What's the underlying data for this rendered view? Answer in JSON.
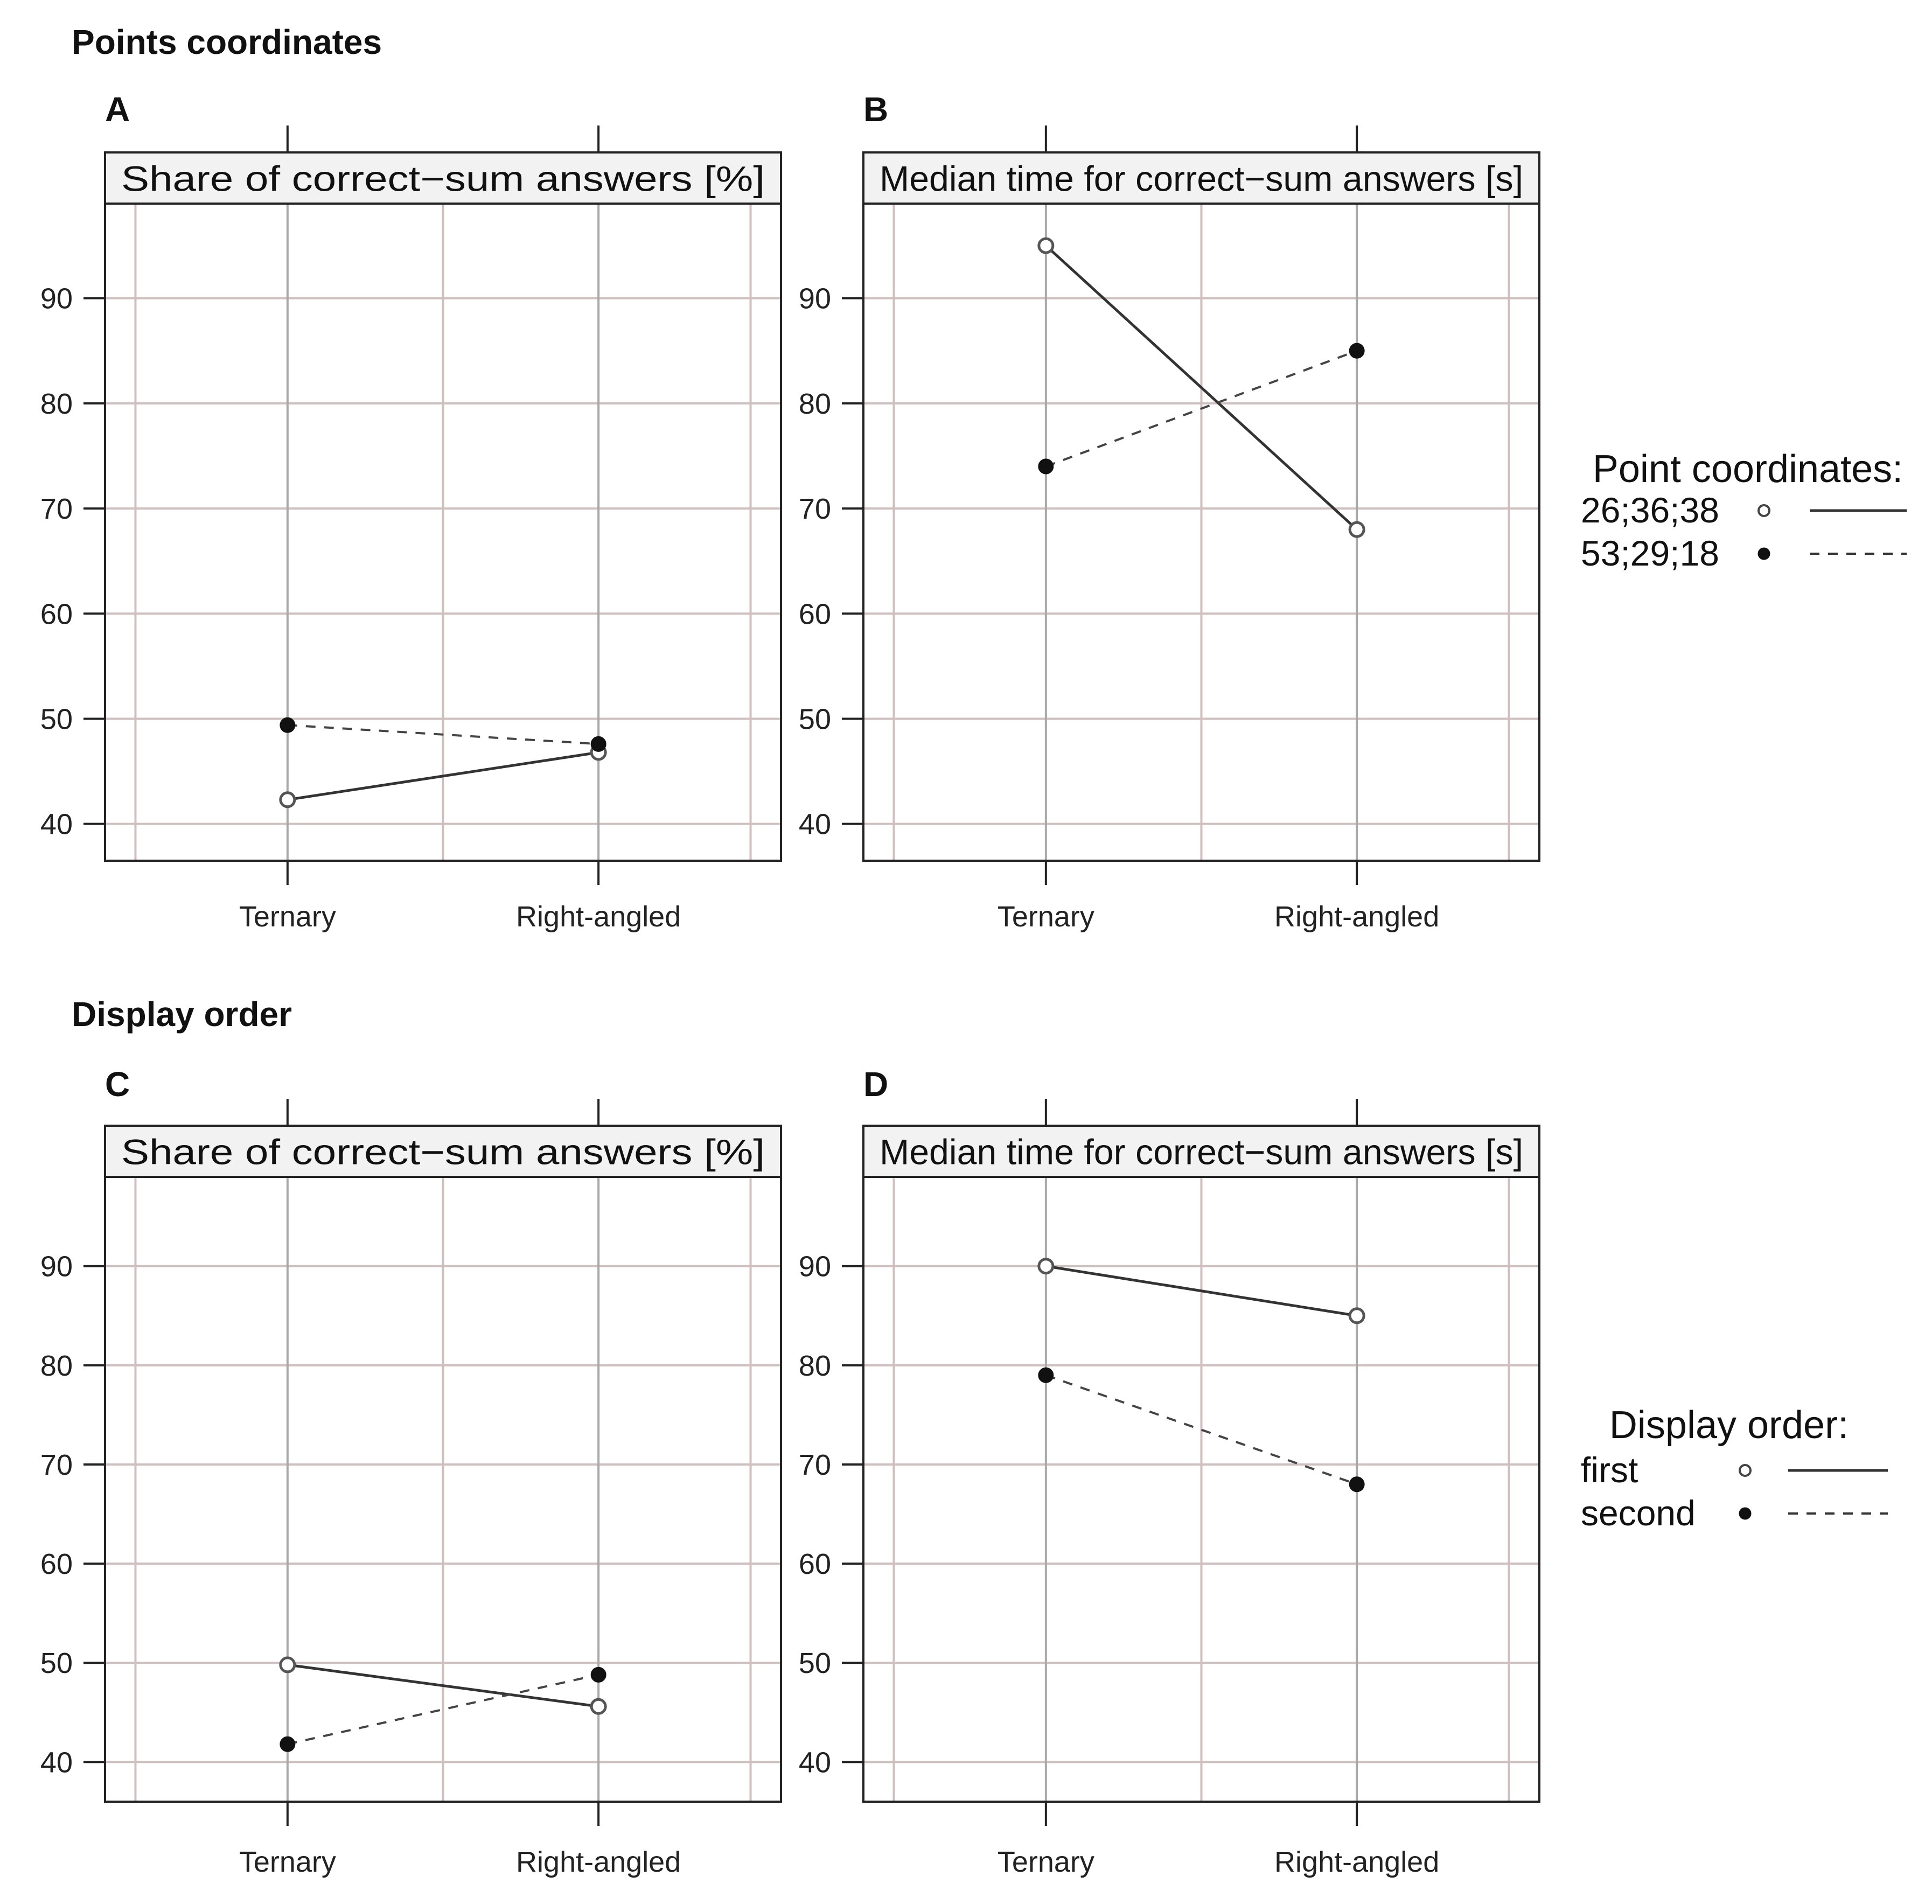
{
  "sections": [
    {
      "title": "Points coordinates",
      "legend_title": "Point coordinates:"
    },
    {
      "title": "Display order",
      "legend_title": "Display order:"
    }
  ],
  "chart_data": [
    {
      "panel": "A",
      "type": "line",
      "title": "Share of correct−sum answers [%]",
      "categories": [
        "Ternary",
        "Right-angled"
      ],
      "yticks": [
        40,
        50,
        60,
        70,
        80,
        90
      ],
      "ylim": [
        36.5,
        99
      ],
      "series": [
        {
          "name": "26;36;38",
          "marker": "open",
          "line": "solid",
          "values": [
            42.3,
            46.8
          ]
        },
        {
          "name": "53;29;18",
          "marker": "filled",
          "line": "dashed",
          "values": [
            49.4,
            47.6
          ]
        }
      ]
    },
    {
      "panel": "B",
      "type": "line",
      "title": "Median time for correct−sum answers [s]",
      "categories": [
        "Ternary",
        "Right-angled"
      ],
      "yticks": [
        40,
        50,
        60,
        70,
        80,
        90
      ],
      "ylim": [
        36.5,
        99
      ],
      "series": [
        {
          "name": "26;36;38",
          "marker": "open",
          "line": "solid",
          "values": [
            95,
            68
          ]
        },
        {
          "name": "53;29;18",
          "marker": "filled",
          "line": "dashed",
          "values": [
            74,
            85
          ]
        }
      ]
    },
    {
      "panel": "C",
      "type": "line",
      "title": "Share of correct−sum answers [%]",
      "categories": [
        "Ternary",
        "Right-angled"
      ],
      "yticks": [
        40,
        50,
        60,
        70,
        80,
        90
      ],
      "ylim": [
        36,
        99
      ],
      "series": [
        {
          "name": "first",
          "marker": "open",
          "line": "solid",
          "values": [
            49.8,
            45.6
          ]
        },
        {
          "name": "second",
          "marker": "filled",
          "line": "dashed",
          "values": [
            41.8,
            48.8
          ]
        }
      ]
    },
    {
      "panel": "D",
      "type": "line",
      "title": "Median time for correct−sum answers [s]",
      "categories": [
        "Ternary",
        "Right-angled"
      ],
      "yticks": [
        40,
        50,
        60,
        70,
        80,
        90
      ],
      "ylim": [
        36,
        99
      ],
      "series": [
        {
          "name": "first",
          "marker": "open",
          "line": "solid",
          "values": [
            90,
            85
          ]
        },
        {
          "name": "second",
          "marker": "filled",
          "line": "dashed",
          "values": [
            79,
            68
          ]
        }
      ]
    }
  ],
  "legends": [
    {
      "title": "Point coordinates:",
      "items": [
        {
          "label": "26;36;38",
          "marker": "open",
          "line": "solid"
        },
        {
          "label": "53;29;18",
          "marker": "filled",
          "line": "dashed"
        }
      ]
    },
    {
      "title": "Display order:",
      "items": [
        {
          "label": "first",
          "marker": "open",
          "line": "solid"
        },
        {
          "label": "second",
          "marker": "filled",
          "line": "dashed"
        }
      ]
    }
  ]
}
